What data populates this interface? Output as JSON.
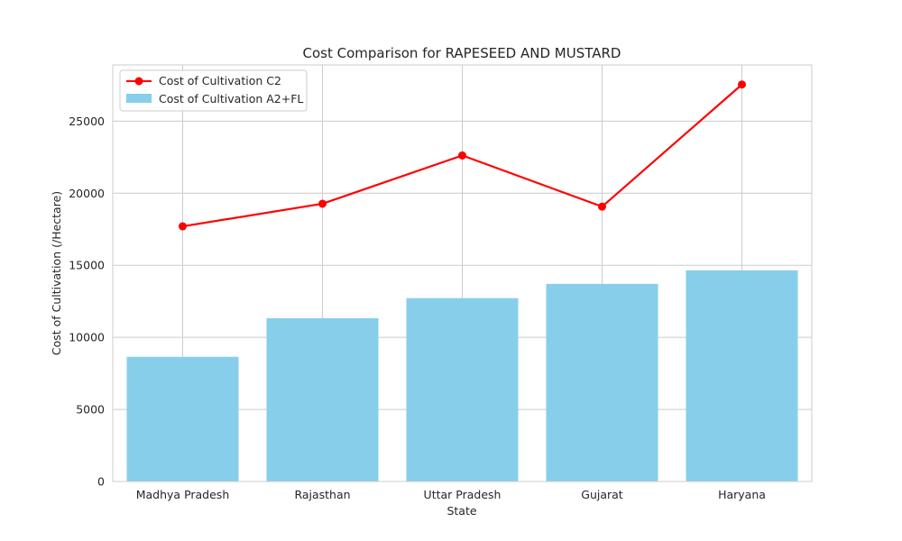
{
  "chart_data": {
    "type": "bar",
    "title": "Cost Comparison for RAPESEED AND MUSTARD",
    "xlabel": "State",
    "ylabel": "Cost of Cultivation (/Hectare)",
    "categories": [
      "Madhya Pradesh",
      "Rajasthan",
      "Uttar Pradesh",
      "Gujarat",
      "Haryana"
    ],
    "ylim": [
      0,
      28900
    ],
    "yticks": [
      0,
      5000,
      10000,
      15000,
      20000,
      25000
    ],
    "grid": true,
    "legend_position": "top-left",
    "series": [
      {
        "name": "Cost of Cultivation A2+FL",
        "type": "bar",
        "color": "#87ceeb",
        "values": [
          8650,
          11330,
          12720,
          13710,
          14650
        ]
      },
      {
        "name": "Cost of Cultivation C2",
        "type": "line",
        "color": "#ff0000",
        "marker": "circle",
        "values": [
          17700,
          19270,
          22620,
          19070,
          27540
        ]
      }
    ]
  }
}
